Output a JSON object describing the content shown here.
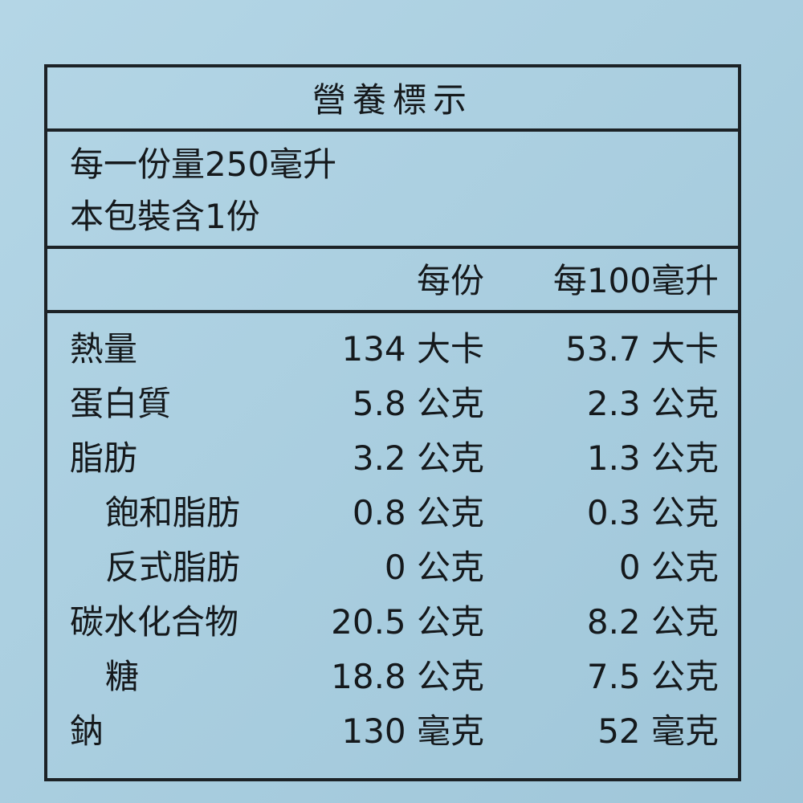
{
  "header": {
    "title": "營養標示"
  },
  "serving": [
    "每一份量250毫升",
    "本包裝含1份"
  ],
  "columns": [
    "每份",
    "每100毫升"
  ],
  "rows": [
    {
      "name": "熱量",
      "indent": false,
      "per_serving": "134 大卡",
      "per_100ml": "53.7 大卡"
    },
    {
      "name": "蛋白質",
      "indent": false,
      "per_serving": "5.8 公克",
      "per_100ml": "2.3 公克"
    },
    {
      "name": "脂肪",
      "indent": false,
      "per_serving": "3.2 公克",
      "per_100ml": "1.3 公克"
    },
    {
      "name": "飽和脂肪",
      "indent": true,
      "per_serving": "0.8 公克",
      "per_100ml": "0.3 公克"
    },
    {
      "name": "反式脂肪",
      "indent": true,
      "per_serving": "0 公克",
      "per_100ml": "0 公克"
    },
    {
      "name": "碳水化合物",
      "indent": false,
      "per_serving": "20.5 公克",
      "per_100ml": "8.2 公克"
    },
    {
      "name": "糖",
      "indent": true,
      "per_serving": "18.8 公克",
      "per_100ml": "7.5 公克"
    },
    {
      "name": "鈉",
      "indent": false,
      "per_serving": "130 毫克",
      "per_100ml": "52 毫克"
    }
  ]
}
